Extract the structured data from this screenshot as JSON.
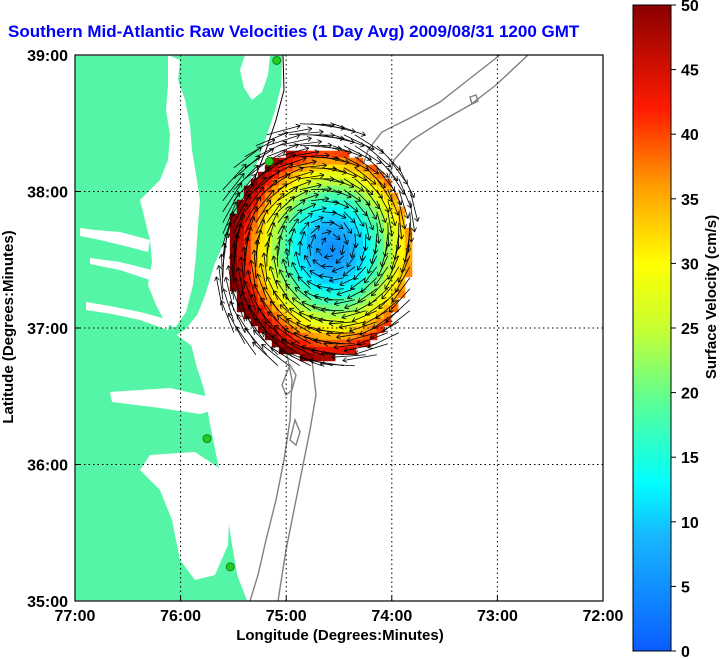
{
  "title": "Southern Mid-Atlantic Raw Velocities (1 Day Avg) 2009/08/31 1200 GMT",
  "colors": {
    "land": "#55f5a8",
    "station": "#22cc22",
    "title": "#0000ff",
    "isobath": "#808080"
  },
  "chart_data": {
    "type": "heatmap",
    "xlabel": "Longitude (Degrees:Minutes)",
    "ylabel": "Latitude (Degrees:Minutes)",
    "xlim": [
      -77,
      -72
    ],
    "ylim": [
      35,
      39
    ],
    "x_ticks": [
      {
        "value": -77,
        "label": "77:00"
      },
      {
        "value": -76,
        "label": "76:00"
      },
      {
        "value": -75,
        "label": "75:00"
      },
      {
        "value": -74,
        "label": "74:00"
      },
      {
        "value": -73,
        "label": "73:00"
      },
      {
        "value": -72,
        "label": "72:00"
      }
    ],
    "y_ticks": [
      {
        "value": 35,
        "label": "35:00"
      },
      {
        "value": 36,
        "label": "36:00"
      },
      {
        "value": 37,
        "label": "37:00"
      },
      {
        "value": 38,
        "label": "38:00"
      },
      {
        "value": 39,
        "label": "39:00"
      }
    ],
    "grid": true,
    "colorbar": {
      "label": "Surface Velocity (cm/s)",
      "min": 0,
      "max": 50,
      "ticks": [
        0,
        5,
        10,
        15,
        20,
        25,
        30,
        35,
        40,
        45,
        50
      ]
    },
    "stations": [
      {
        "lon": -75.09,
        "lat": 38.96
      },
      {
        "lon": -75.16,
        "lat": 38.22
      },
      {
        "lon": -75.75,
        "lat": 36.19
      },
      {
        "lon": -75.53,
        "lat": 35.25
      }
    ],
    "velocity_field": {
      "center": {
        "lon": -74.6,
        "lat": 37.6
      },
      "min_speed": 5,
      "max_speed": 50,
      "extent": {
        "lon_min": -75.6,
        "lon_max": -73.85,
        "lat_min": 36.8,
        "lat_max": 38.35
      }
    }
  }
}
